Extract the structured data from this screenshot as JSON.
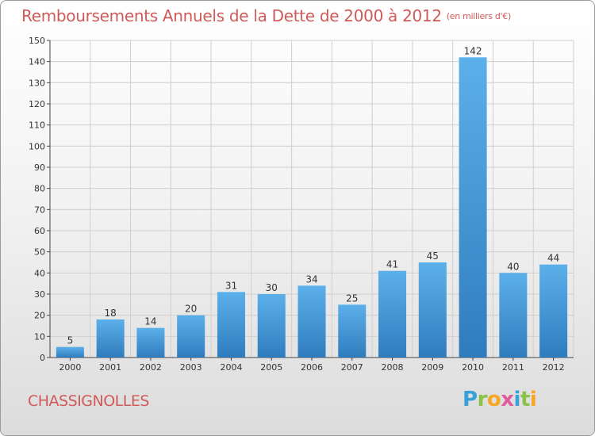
{
  "header": {
    "title": "Remboursements Annuels de la Dette de 2000 à 2012",
    "subtitle": "(en milliers d'€)"
  },
  "footer": {
    "commune": "CHASSIGNOLLES",
    "logo_text": "Proxiti",
    "logo_colors": [
      "#3aa0d8",
      "#8bc34a",
      "#f5a623",
      "#e05a9c",
      "#3aa0d8",
      "#8bc34a",
      "#f5a623"
    ]
  },
  "colors": {
    "title": "#d05a5a",
    "bar_light": "#5cb0ea",
    "bar_dark": "#2f7cbd",
    "grid": "#cfcfcf",
    "axis": "#444444"
  },
  "chart_data": {
    "type": "bar",
    "categories": [
      "2000",
      "2001",
      "2002",
      "2003",
      "2004",
      "2005",
      "2006",
      "2007",
      "2008",
      "2009",
      "2010",
      "2011",
      "2012"
    ],
    "values": [
      5,
      18,
      14,
      20,
      31,
      30,
      34,
      25,
      41,
      45,
      142,
      40,
      44
    ],
    "ylim": [
      0,
      150
    ],
    "yticks": [
      0,
      10,
      20,
      30,
      40,
      50,
      60,
      70,
      80,
      90,
      100,
      110,
      120,
      130,
      140,
      150
    ],
    "grid": true,
    "data_labels": true
  }
}
